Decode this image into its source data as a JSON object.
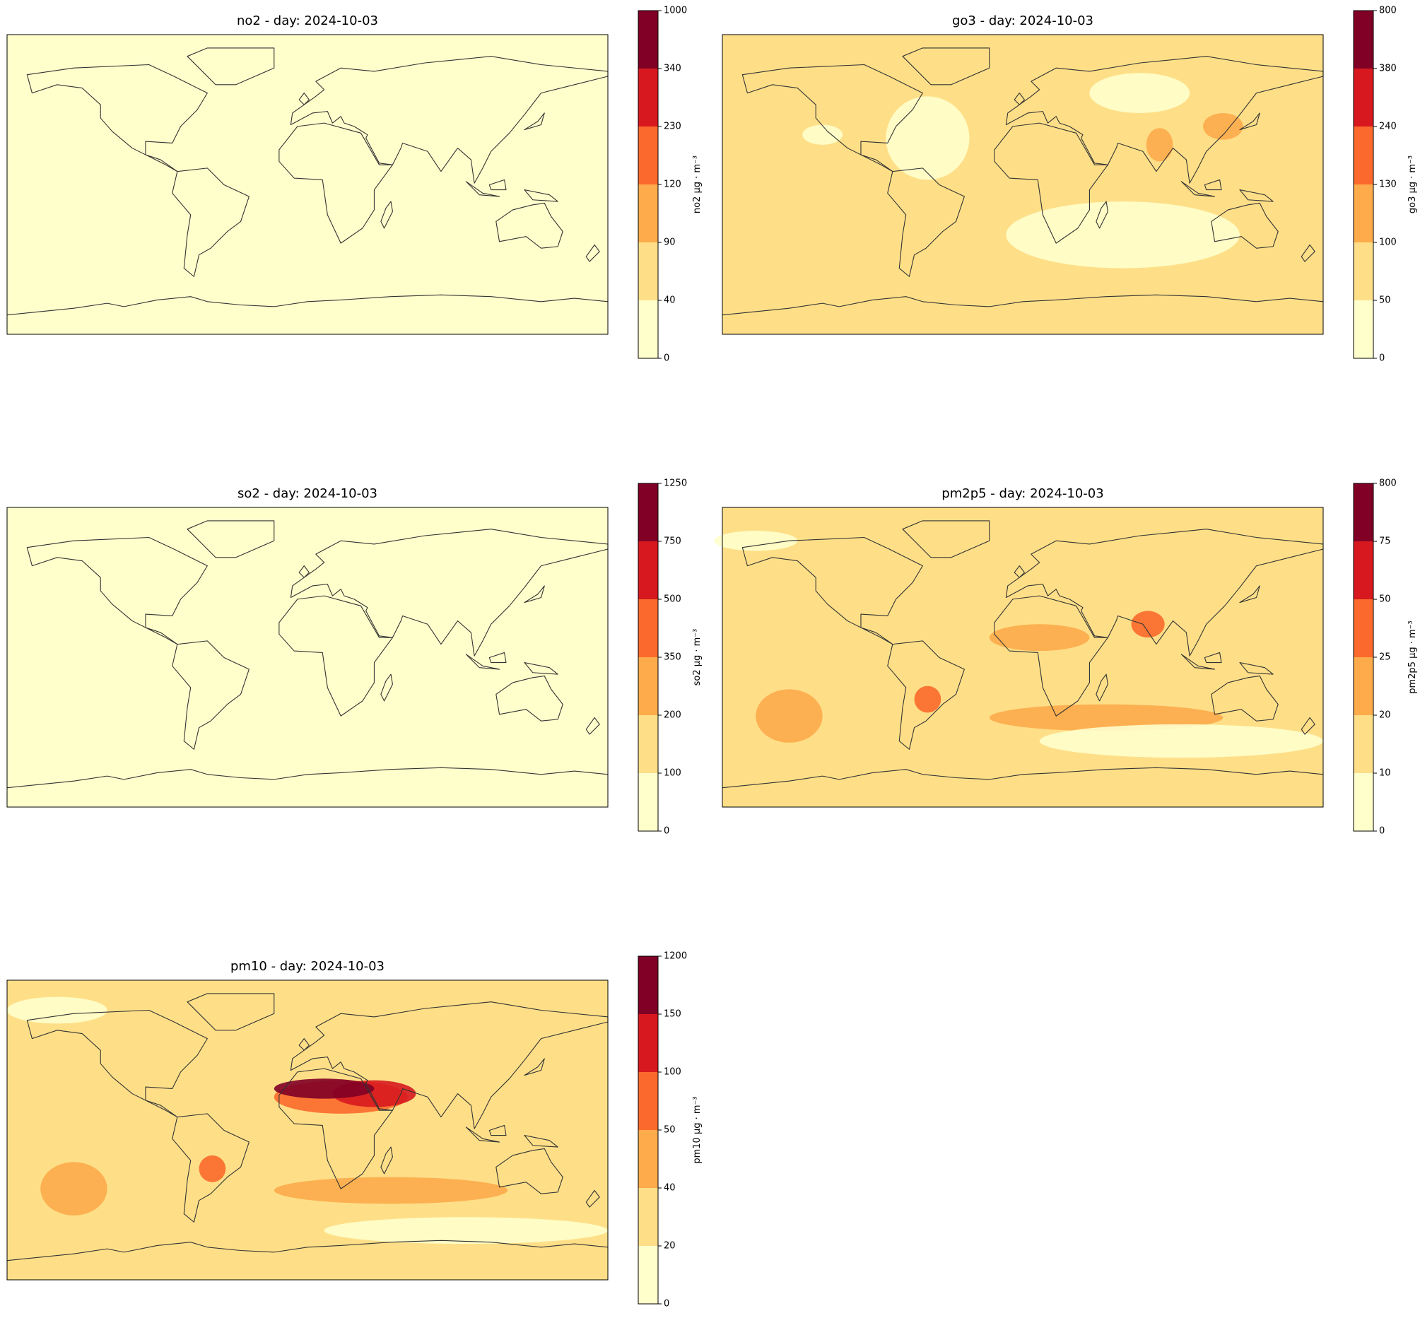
{
  "panels": [
    {
      "title": "no2 - day: 2024-10-03",
      "colorbar": {
        "label": "no2 μg · m⁻³",
        "ticks": [
          0,
          40,
          90,
          120,
          230,
          340,
          1000
        ],
        "colors": [
          "#ffffcc",
          "#fedf88",
          "#fdab4b",
          "#fb6a2c",
          "#d7191f",
          "#800026"
        ]
      }
    },
    {
      "title": "go3 - day: 2024-10-03",
      "colorbar": {
        "label": "go3 μg · m⁻³",
        "ticks": [
          0,
          50,
          100,
          130,
          240,
          380,
          800
        ],
        "colors": [
          "#ffffcc",
          "#fedf88",
          "#fdab4b",
          "#fb6a2c",
          "#d7191f",
          "#800026"
        ]
      }
    },
    {
      "title": "so2 - day: 2024-10-03",
      "colorbar": {
        "label": "so2 μg · m⁻³",
        "ticks": [
          0,
          100,
          200,
          350,
          500,
          750,
          1250
        ],
        "colors": [
          "#ffffcc",
          "#fedf88",
          "#fdab4b",
          "#fb6a2c",
          "#d7191f",
          "#800026"
        ]
      }
    },
    {
      "title": "pm2p5 - day: 2024-10-03",
      "colorbar": {
        "label": "pm2p5 μg · m⁻³",
        "ticks": [
          0,
          10,
          20,
          25,
          50,
          75,
          800
        ],
        "colors": [
          "#ffffcc",
          "#fedf88",
          "#fdab4b",
          "#fb6a2c",
          "#d7191f",
          "#800026"
        ]
      }
    },
    {
      "title": "pm10 - day: 2024-10-03",
      "colorbar": {
        "label": "pm10 μg · m⁻³",
        "ticks": [
          0,
          20,
          40,
          50,
          100,
          150,
          1200
        ],
        "colors": [
          "#ffffcc",
          "#fedf88",
          "#fdab4b",
          "#fb6a2c",
          "#d7191f",
          "#800026"
        ]
      }
    }
  ]
}
